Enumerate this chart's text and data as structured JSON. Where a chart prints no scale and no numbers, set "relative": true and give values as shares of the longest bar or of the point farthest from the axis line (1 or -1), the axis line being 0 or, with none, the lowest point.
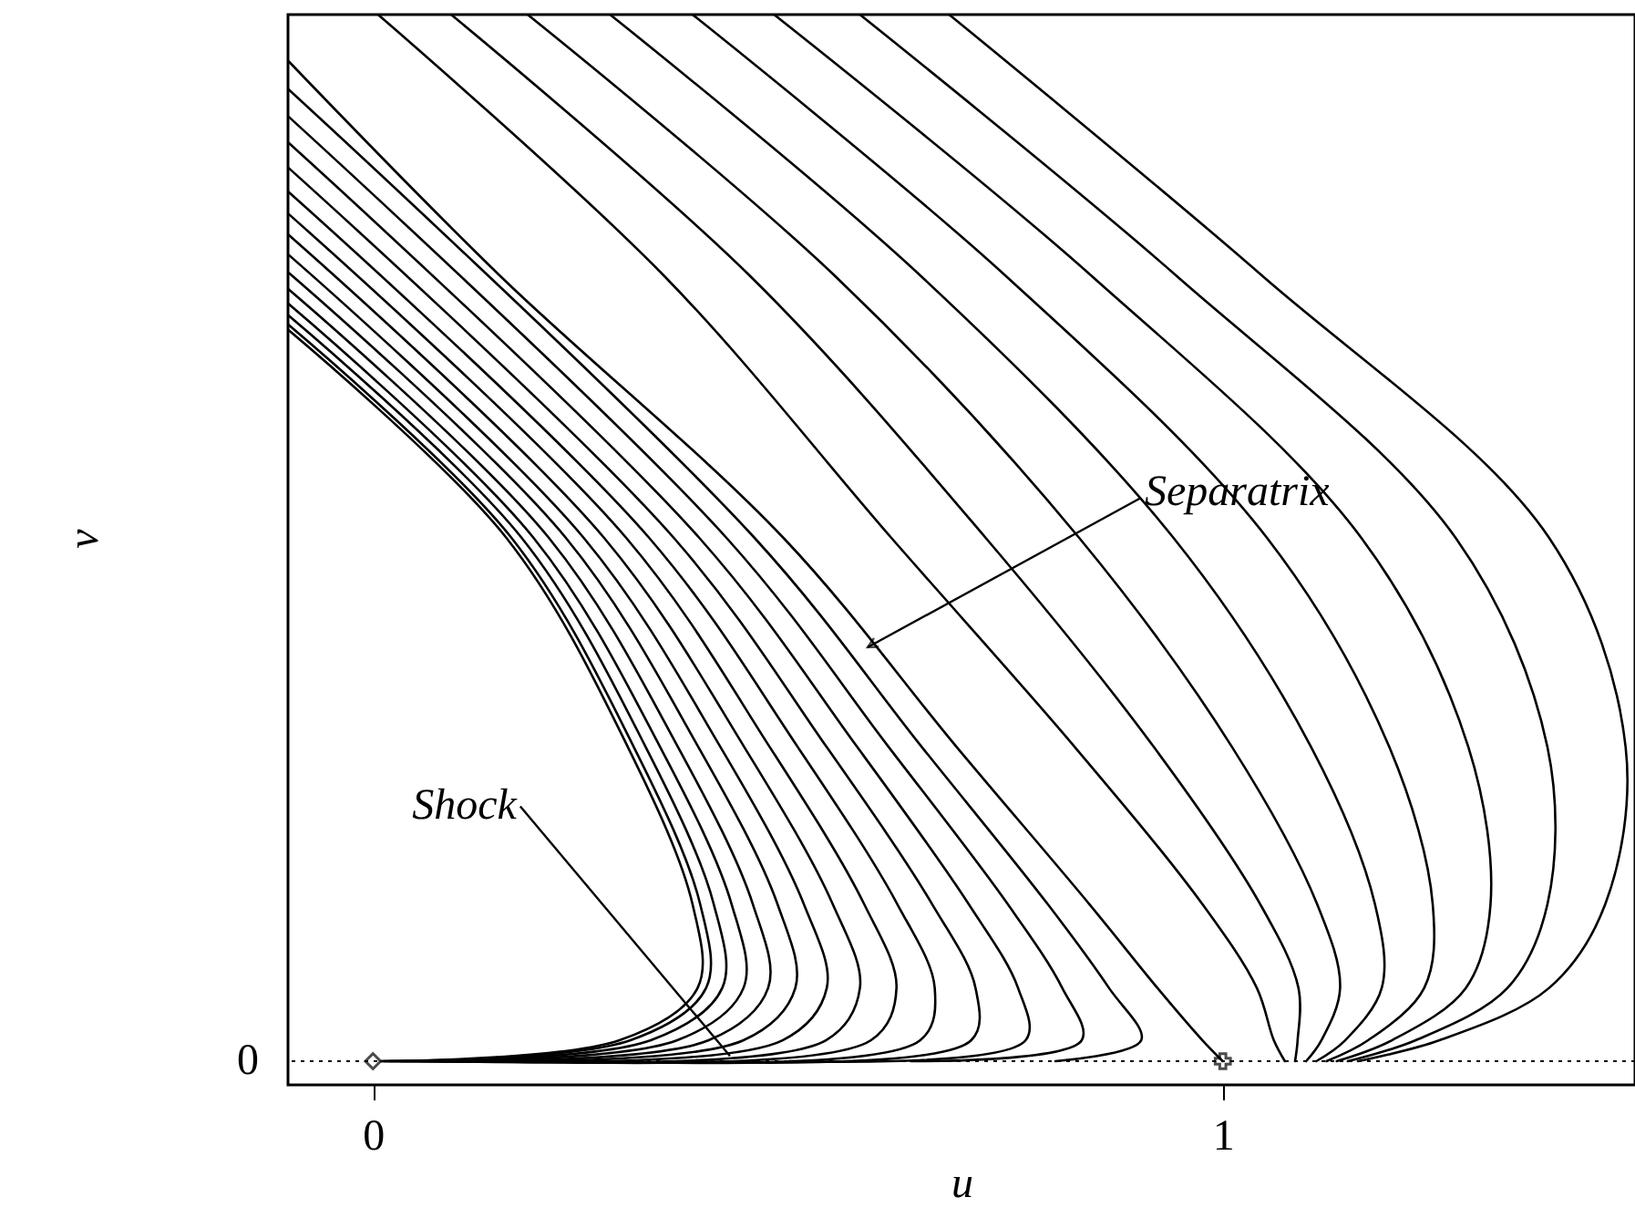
{
  "chart_data": {
    "type": "line",
    "xlabel": "u",
    "ylabel": "v",
    "xlim": [
      -0.1,
      1.485
    ],
    "xticks": [
      0,
      1
    ],
    "relative": true,
    "grid": false,
    "line_style": "solid",
    "ref_lines": [
      {
        "axis": "y",
        "value": 0,
        "line_style": "dotted",
        "color": "#000000"
      }
    ],
    "annotations": [
      "Separatrix",
      {
        "text": "Shock",
        "x": 0.42,
        "y": 0.005
      },
      "0"
    ],
    "series": [
      {
        "color": "#000000",
        "x": [
          -0.1,
          0.157,
          0.3,
          0.376,
          0.382,
          0.29,
          0.01
        ],
        "values": [
          0.699,
          0.5,
          0.3,
          0.15,
          0.07,
          0.02,
          0
        ]
      },
      {
        "color": "#000000",
        "x": [
          -0.1,
          0.163,
          0.307,
          0.385,
          0.392,
          0.303,
          0.01
        ],
        "values": [
          0.704,
          0.5,
          0.3,
          0.15,
          0.07,
          0.02,
          0
        ]
      },
      {
        "color": "#000000",
        "x": [
          -0.1,
          0.175,
          0.321,
          0.401,
          0.411,
          0.327,
          0.013
        ],
        "values": [
          0.713,
          0.5,
          0.3,
          0.15,
          0.07,
          0.02,
          0
        ]
      },
      {
        "color": "#000000",
        "x": [
          -0.1,
          0.189,
          0.338,
          0.422,
          0.436,
          0.358,
          0.02
        ],
        "values": [
          0.724,
          0.5,
          0.3,
          0.15,
          0.07,
          0.02,
          0
        ]
      },
      {
        "color": "#000000",
        "x": [
          -0.1,
          0.207,
          0.359,
          0.447,
          0.465,
          0.395,
          0.033
        ],
        "values": [
          0.738,
          0.5,
          0.3,
          0.15,
          0.07,
          0.02,
          0
        ]
      },
      {
        "color": "#000000",
        "x": [
          -0.1,
          0.227,
          0.383,
          0.476,
          0.497,
          0.436,
          0.055
        ],
        "values": [
          0.754,
          0.5,
          0.3,
          0.15,
          0.07,
          0.02,
          0
        ]
      },
      {
        "color": "#000000",
        "x": [
          -0.1,
          0.248,
          0.409,
          0.507,
          0.534,
          0.482,
          0.088
        ],
        "values": [
          0.771,
          0.5,
          0.3,
          0.15,
          0.07,
          0.02,
          0
        ]
      },
      {
        "color": "#000000",
        "x": [
          -0.1,
          0.272,
          0.437,
          0.541,
          0.573,
          0.533,
          0.134
        ],
        "values": [
          0.79,
          0.5,
          0.3,
          0.15,
          0.07,
          0.02,
          0
        ]
      },
      {
        "color": "#000000",
        "x": [
          -0.1,
          0.298,
          0.467,
          0.578,
          0.616,
          0.586,
          0.195
        ],
        "values": [
          0.81,
          0.5,
          0.3,
          0.15,
          0.07,
          0.02,
          0
        ]
      },
      {
        "color": "#000000",
        "x": [
          -0.1,
          0.325,
          0.5,
          0.617,
          0.661,
          0.644,
          0.273
        ],
        "values": [
          0.831,
          0.5,
          0.3,
          0.15,
          0.07,
          0.02,
          0
        ]
      },
      {
        "color": "#000000",
        "x": [
          -0.1,
          0.354,
          0.534,
          0.658,
          0.709,
          0.704,
          0.371
        ],
        "values": [
          0.854,
          0.5,
          0.3,
          0.15,
          0.07,
          0.02,
          0
        ]
      },
      {
        "color": "#000000",
        "x": [
          -0.1,
          0.384,
          0.57,
          0.701,
          0.759,
          0.768,
          0.49
        ],
        "values": [
          0.878,
          0.5,
          0.3,
          0.15,
          0.07,
          0.02,
          0
        ]
      },
      {
        "color": "#000000",
        "x": [
          -0.1,
          0.416,
          0.607,
          0.747,
          0.811,
          0.834,
          0.633
        ],
        "values": [
          0.903,
          0.5,
          0.3,
          0.15,
          0.07,
          0.02,
          0
        ]
      },
      {
        "color": "#000000",
        "x": [
          -0.1,
          0.449,
          0.646,
          0.794,
          0.866,
          0.904,
          0.803
        ],
        "values": [
          0.929,
          0.5,
          0.3,
          0.15,
          0.07,
          0.02,
          0
        ]
      },
      {
        "color": "#000000",
        "x": [
          -0.1,
          0.15,
          0.483,
          0.687,
          0.843,
          0.923,
          0.976,
          1.0
        ],
        "values": [
          0.956,
          0.75,
          0.5,
          0.3,
          0.15,
          0.07,
          0.02,
          0
        ]
      },
      {
        "color": "#000000",
        "x": [
          0.006,
          0.343,
          0.61,
          0.826,
          0.976,
          1.04,
          1.06,
          1.073
        ],
        "values": [
          1,
          0.75,
          0.5,
          0.3,
          0.15,
          0.07,
          0.02,
          0
        ]
      },
      {
        "color": "#000000",
        "x": [
          0.092,
          0.444,
          0.721,
          0.919,
          1.044,
          1.089,
          1.088,
          1.085
        ],
        "values": [
          1,
          0.75,
          0.5,
          0.3,
          0.15,
          0.07,
          0.02,
          0
        ]
      },
      {
        "color": "#000000",
        "x": [
          0.182,
          0.544,
          0.831,
          1.011,
          1.111,
          1.138,
          1.116,
          1.098
        ],
        "values": [
          1,
          0.75,
          0.5,
          0.3,
          0.15,
          0.07,
          0.02,
          0
        ]
      },
      {
        "color": "#000000",
        "x": [
          0.279,
          0.645,
          0.942,
          1.104,
          1.179,
          1.187,
          1.144,
          1.11
        ],
        "values": [
          1,
          0.75,
          0.5,
          0.3,
          0.15,
          0.07,
          0.02,
          0
        ]
      },
      {
        "color": "#000000",
        "x": [
          0.376,
          0.745,
          1.052,
          1.196,
          1.247,
          1.237,
          1.171,
          1.122
        ],
        "values": [
          1,
          0.75,
          0.5,
          0.3,
          0.15,
          0.07,
          0.02,
          0
        ]
      },
      {
        "color": "#000000",
        "x": [
          0.472,
          0.846,
          1.163,
          1.289,
          1.315,
          1.286,
          1.199,
          1.134
        ],
        "values": [
          1,
          0.75,
          0.5,
          0.3,
          0.15,
          0.07,
          0.02,
          0
        ]
      },
      {
        "color": "#000000",
        "x": [
          0.573,
          0.946,
          1.274,
          1.382,
          1.382,
          1.335,
          1.227,
          1.147
        ],
        "values": [
          1,
          0.75,
          0.5,
          0.3,
          0.15,
          0.07,
          0.02,
          0
        ]
      },
      {
        "color": "#000000",
        "x": [
          0.678,
          1.047,
          1.384,
          1.474,
          1.45,
          1.384,
          1.255,
          1.159
        ],
        "values": [
          1,
          0.75,
          0.5,
          0.3,
          0.15,
          0.07,
          0.02,
          0
        ]
      },
      {
        "type": "scatter",
        "marker": "diamond",
        "color": "#000000",
        "x": [
          0
        ],
        "values": [
          0
        ]
      },
      {
        "type": "scatter",
        "marker": "cross",
        "color": "#000000",
        "x": [
          1
        ],
        "values": [
          0
        ]
      }
    ]
  }
}
